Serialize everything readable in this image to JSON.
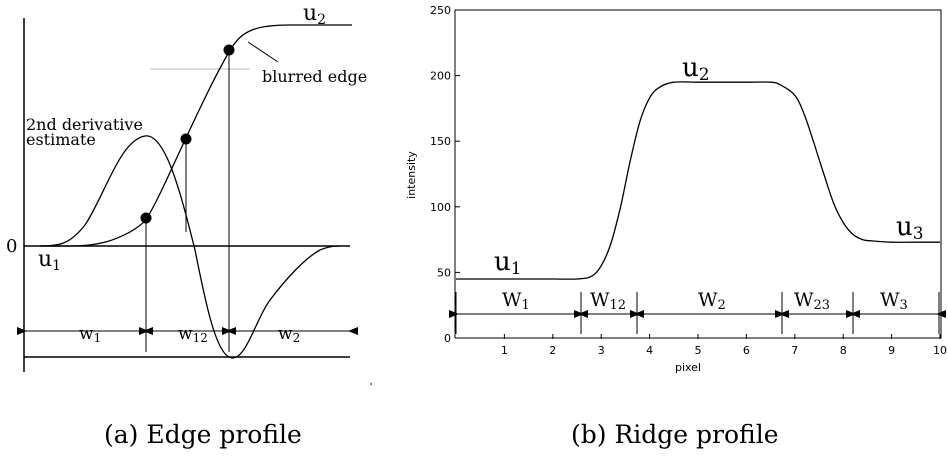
{
  "edge_panel": {
    "caption": "(a) Edge profile",
    "zero_label": "0",
    "u1": "u",
    "u1_sub": "1",
    "u2": "u",
    "u2_sub": "2",
    "blurred_edge": "blurred edge",
    "second_derivative_line1": "2nd derivative",
    "second_derivative_line2": "estimate",
    "w1": "w",
    "w1_sub": "1",
    "w12": "w",
    "w12_sub": "12",
    "w2": "w",
    "w2_sub": "2"
  },
  "ridge_panel": {
    "caption": "(b) Ridge profile",
    "ylabel": "intensity",
    "xlabel": "pixel",
    "y_ticks": [
      "0",
      "50",
      "100",
      "150",
      "200",
      "250"
    ],
    "x_ticks": [
      "1",
      "2",
      "3",
      "4",
      "5",
      "6",
      "7",
      "8",
      "9",
      "10"
    ],
    "u1": "u",
    "u1_sub": "1",
    "u2": "u",
    "u2_sub": "2",
    "u3": "u",
    "u3_sub": "3",
    "w1": "W",
    "w1_sub": "1",
    "w12": "W",
    "w12_sub": "12",
    "w2": "W",
    "w2_sub": "2",
    "w23": "W",
    "w23_sub": "23",
    "w3": "W",
    "w3_sub": "3"
  },
  "chart_data": {
    "type": "line",
    "xlabel": "pixel",
    "ylabel": "intensity",
    "xlim": [
      0,
      10
    ],
    "ylim": [
      0,
      250
    ],
    "x": [
      0,
      0.5,
      1,
      1.5,
      2,
      2.5,
      2.8,
      3.0,
      3.2,
      3.4,
      3.6,
      3.8,
      4.0,
      4.2,
      4.5,
      5,
      5.5,
      6,
      6.5,
      6.7,
      7.0,
      7.2,
      7.4,
      7.6,
      7.8,
      8.0,
      8.2,
      8.4,
      8.6,
      9,
      9.5,
      10
    ],
    "series": [
      {
        "values": [
          45,
          45,
          45,
          45,
          45,
          45,
          47,
          55,
          72,
          100,
          135,
          165,
          183,
          191,
          195,
          195,
          195,
          195,
          195,
          193,
          185,
          170,
          148,
          125,
          103,
          88,
          79,
          75,
          74,
          73,
          73,
          73
        ]
      }
    ]
  }
}
